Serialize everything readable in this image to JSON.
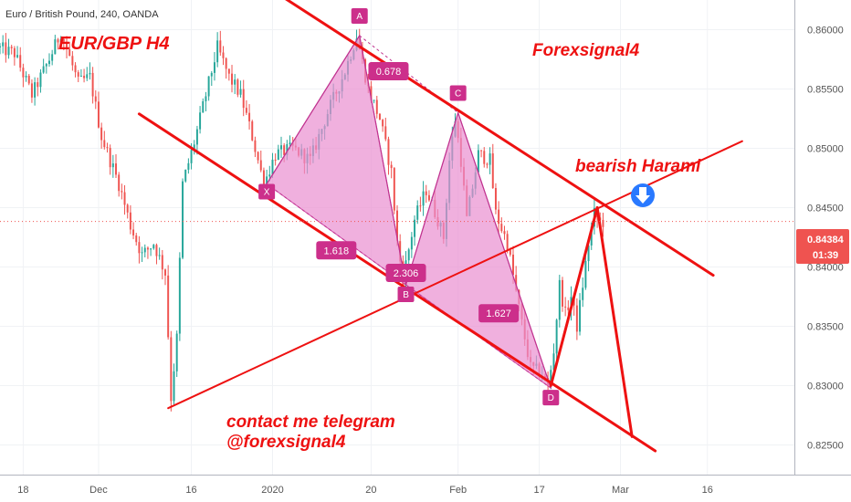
{
  "chart_data": {
    "type": "candlestick",
    "symbol_title": "Euro / British Pound, 240, OANDA",
    "price_axis": {
      "ticks": [
        "0.86000",
        "0.85500",
        "0.85000",
        "0.84500",
        "0.84000",
        "0.83500",
        "0.83000",
        "0.82500"
      ],
      "tick_values": [
        0.86,
        0.855,
        0.85,
        0.845,
        0.84,
        0.835,
        0.83,
        0.825
      ],
      "ylim": [
        0.8225,
        0.8625
      ]
    },
    "time_axis": {
      "ticks": [
        "18",
        "Dec",
        "16",
        "2020",
        "20",
        "Feb",
        "17",
        "Mar",
        "16"
      ],
      "tick_times": [
        0.0,
        13.0,
        29.0,
        43.0,
        60.0,
        75.0,
        89.0,
        103.0,
        118.0
      ],
      "xlim": [
        -4.0,
        133.0
      ]
    },
    "current_price": {
      "price": "0.84384",
      "value": 0.84384,
      "countdown": "01:39"
    },
    "colors": {
      "up": "#26a69a",
      "down": "#ef5350",
      "pattern_fill": "#e98fd0",
      "label_bg": "#cc2f8b",
      "trend_line": "#ee1111",
      "arrow_bg": "#2979ff"
    },
    "annotations": {
      "pair_title": "EUR/GBP H4",
      "brand": "Forexsignal4",
      "signal": "bearish Harami",
      "contact_line1": "contact me telegram",
      "contact_line2": "@forexsignal4"
    },
    "pattern_points": [
      {
        "label": "X",
        "t": 42.0,
        "price": 0.847
      },
      {
        "label": "A",
        "t": 58.0,
        "price": 0.8595
      },
      {
        "label": "B",
        "t": 66.0,
        "price": 0.8385
      },
      {
        "label": "C",
        "t": 75.0,
        "price": 0.853
      },
      {
        "label": "D",
        "t": 91.0,
        "price": 0.8298
      }
    ],
    "ratios": [
      {
        "label": "0.678",
        "t": 63.0,
        "price": 0.8565
      },
      {
        "label": "1.618",
        "t": 54.0,
        "price": 0.8414
      },
      {
        "label": "2.306",
        "t": 66.0,
        "price": 0.8395
      },
      {
        "label": "1.627",
        "t": 82.0,
        "price": 0.8361
      }
    ],
    "trend_lines": [
      {
        "from": {
          "t": 20.0,
          "price": 0.8529
        },
        "to": {
          "t": 109.0,
          "price": 0.8245
        }
      },
      {
        "from": {
          "t": 44.0,
          "price": 0.863
        },
        "to": {
          "t": 119.0,
          "price": 0.8393
        }
      },
      {
        "from": {
          "t": 25.0,
          "price": 0.8281
        },
        "to": {
          "t": 124.0,
          "price": 0.8506
        }
      },
      {
        "from": {
          "t": 91.0,
          "price": 0.83
        },
        "to": {
          "t": 99.0,
          "price": 0.845
        }
      },
      {
        "from": {
          "t": 99.0,
          "price": 0.845
        },
        "to": {
          "t": 105.0,
          "price": 0.8257
        }
      }
    ],
    "price_path": [
      {
        "t": -4.0,
        "price": 0.8585
      },
      {
        "t": -1.0,
        "price": 0.858
      },
      {
        "t": 2.0,
        "price": 0.8545
      },
      {
        "t": 5.0,
        "price": 0.8575
      },
      {
        "t": 7.0,
        "price": 0.8598
      },
      {
        "t": 10.0,
        "price": 0.8555
      },
      {
        "t": 12.0,
        "price": 0.856
      },
      {
        "t": 14.0,
        "price": 0.851
      },
      {
        "t": 17.0,
        "price": 0.847
      },
      {
        "t": 19.0,
        "price": 0.8435
      },
      {
        "t": 21.0,
        "price": 0.841
      },
      {
        "t": 23.0,
        "price": 0.842
      },
      {
        "t": 25.0,
        "price": 0.8395
      },
      {
        "t": 26.0,
        "price": 0.829
      },
      {
        "t": 27.0,
        "price": 0.834
      },
      {
        "t": 28.0,
        "price": 0.847
      },
      {
        "t": 30.0,
        "price": 0.8505
      },
      {
        "t": 32.0,
        "price": 0.8545
      },
      {
        "t": 34.0,
        "price": 0.8585
      },
      {
        "t": 36.0,
        "price": 0.856
      },
      {
        "t": 38.0,
        "price": 0.8545
      },
      {
        "t": 40.0,
        "price": 0.851
      },
      {
        "t": 42.0,
        "price": 0.847
      },
      {
        "t": 44.0,
        "price": 0.8495
      },
      {
        "t": 47.0,
        "price": 0.85
      },
      {
        "t": 50.0,
        "price": 0.849
      },
      {
        "t": 53.0,
        "price": 0.853
      },
      {
        "t": 56.0,
        "price": 0.8565
      },
      {
        "t": 58.0,
        "price": 0.8595
      },
      {
        "t": 60.0,
        "price": 0.855
      },
      {
        "t": 62.0,
        "price": 0.8525
      },
      {
        "t": 64.0,
        "price": 0.848
      },
      {
        "t": 65.0,
        "price": 0.842
      },
      {
        "t": 66.0,
        "price": 0.839
      },
      {
        "t": 68.0,
        "price": 0.844
      },
      {
        "t": 70.0,
        "price": 0.8465
      },
      {
        "t": 72.0,
        "price": 0.844
      },
      {
        "t": 73.0,
        "price": 0.8425
      },
      {
        "t": 74.0,
        "price": 0.849
      },
      {
        "t": 75.0,
        "price": 0.8525
      },
      {
        "t": 76.0,
        "price": 0.849
      },
      {
        "t": 77.0,
        "price": 0.844
      },
      {
        "t": 79.0,
        "price": 0.8495
      },
      {
        "t": 81.0,
        "price": 0.849
      },
      {
        "t": 82.0,
        "price": 0.8445
      },
      {
        "t": 84.0,
        "price": 0.842
      },
      {
        "t": 86.0,
        "price": 0.8365
      },
      {
        "t": 88.0,
        "price": 0.8315
      },
      {
        "t": 90.0,
        "price": 0.831
      },
      {
        "t": 91.0,
        "price": 0.8298
      },
      {
        "t": 92.0,
        "price": 0.833
      },
      {
        "t": 93.0,
        "price": 0.8385
      },
      {
        "t": 94.0,
        "price": 0.836
      },
      {
        "t": 95.0,
        "price": 0.8375
      },
      {
        "t": 96.0,
        "price": 0.835
      },
      {
        "t": 97.0,
        "price": 0.8385
      },
      {
        "t": 98.0,
        "price": 0.842
      },
      {
        "t": 99.0,
        "price": 0.8445
      },
      {
        "t": 100.0,
        "price": 0.8438
      }
    ]
  }
}
